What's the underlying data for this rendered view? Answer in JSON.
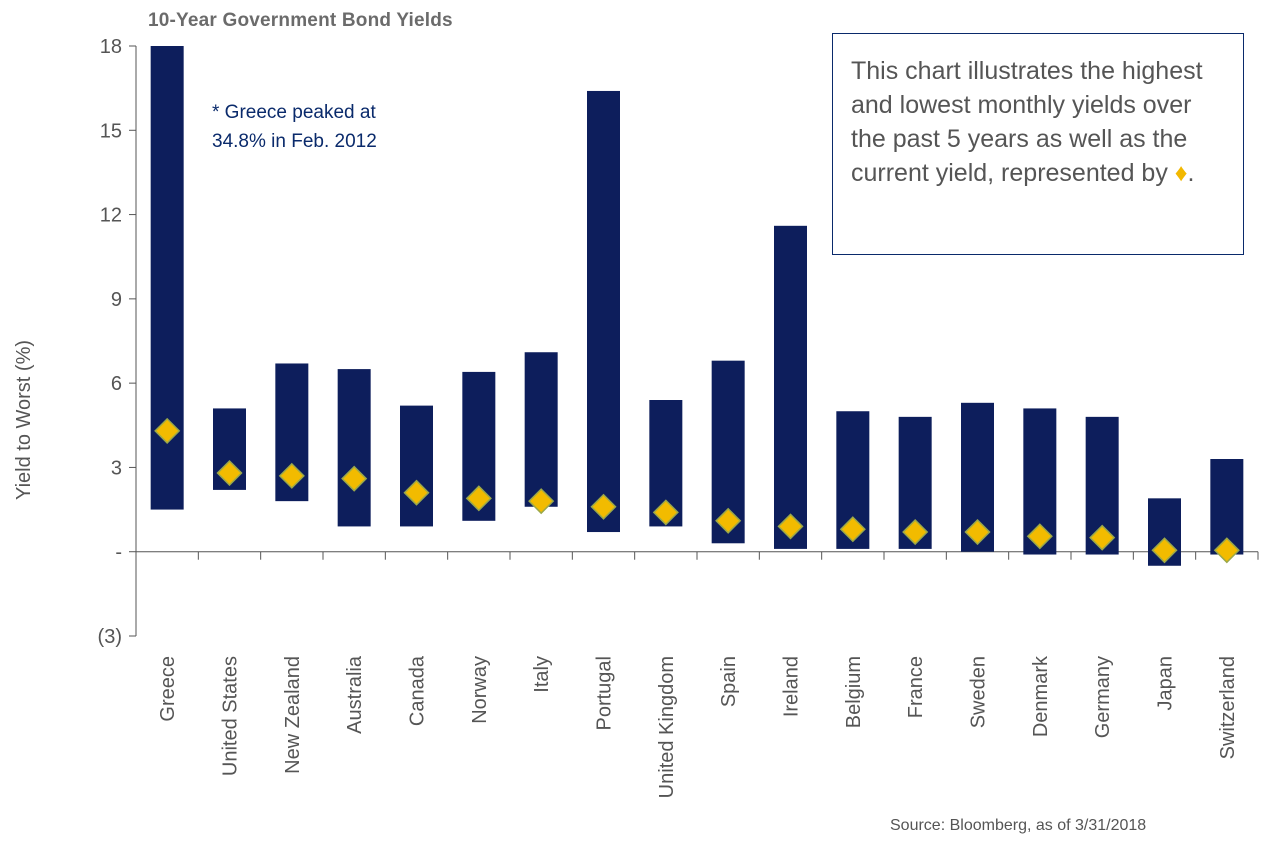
{
  "chart_data": {
    "type": "bar",
    "title": "10-Year Government Bond Yields",
    "ylabel": "Yield to Worst (%)",
    "xlabel": "",
    "ylim": [
      -3,
      18
    ],
    "yticks": [
      -3,
      0,
      3,
      6,
      9,
      12,
      15,
      18
    ],
    "ytick_labels": [
      "(3)",
      "-",
      "3",
      "6",
      "9",
      "12",
      "15",
      "18"
    ],
    "categories": [
      "Greece",
      "United States",
      "New Zealand",
      "Australia",
      "Canada",
      "Norway",
      "Italy",
      "Portugal",
      "United Kingdom",
      "Spain",
      "Ireland",
      "Belgium",
      "France",
      "Sweden",
      "Denmark",
      "Germany",
      "Japan",
      "Switzerland"
    ],
    "series": [
      {
        "range_type": "floating",
        "low": [
          1.5,
          2.2,
          1.8,
          0.9,
          0.9,
          1.1,
          1.6,
          0.7,
          0.9,
          0.3,
          0.1,
          0.1,
          0.1,
          0.0,
          -0.1,
          -0.1,
          -0.5,
          -0.1
        ],
        "high": [
          18.0,
          5.1,
          6.7,
          6.5,
          5.2,
          6.4,
          7.1,
          16.4,
          5.4,
          6.8,
          11.6,
          5.0,
          4.8,
          5.3,
          5.1,
          4.8,
          1.9,
          3.3
        ]
      },
      {
        "marker": "diamond",
        "values": [
          4.3,
          2.8,
          2.7,
          2.6,
          2.1,
          1.9,
          1.8,
          1.6,
          1.4,
          1.1,
          0.9,
          0.8,
          0.7,
          0.7,
          0.55,
          0.5,
          0.05,
          0.05
        ]
      }
    ],
    "annotation": "* Greece peaked at 34.8% in Feb. 2012",
    "annotation_lines": [
      "* Greece peaked at",
      "34.8% in Feb. 2012"
    ],
    "note": "This chart illustrates the highest and lowest monthly yields over the past 5 years as well as the current yield, represented by ",
    "note_marker": "♦",
    "note_end": ".",
    "source": "Source: Bloomberg, as of 3/31/2018",
    "colors": {
      "bar": "#0d1e5c",
      "diamond": "#f2bb00",
      "diamond_stroke": "#9aa84a",
      "axis": "#555555",
      "text": "#555555",
      "annotation": "#0a2a6b"
    },
    "grid": false,
    "legend": "none"
  }
}
